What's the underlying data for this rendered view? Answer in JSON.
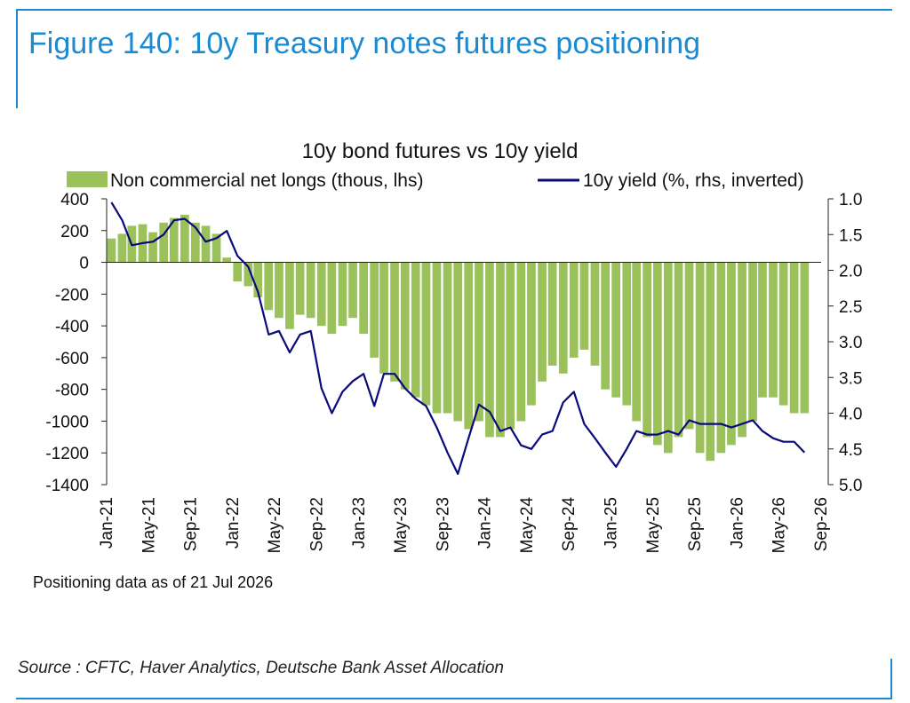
{
  "figure": {
    "title": "Figure 140: 10y Treasury notes futures positioning",
    "source": "Source : CFTC, Haver Analytics, Deutsche Bank Asset Allocation",
    "note": "Positioning data as of 21 Jul 2026"
  },
  "colors": {
    "accent": "#1b8ad0",
    "bars": "#9bc15b",
    "line": "#0a0a7a"
  },
  "chart_data": {
    "type": "bar",
    "title": "10y bond futures vs 10y yield",
    "legend_position": "top",
    "grid": false,
    "x_tick_labels": [
      "Jan-21",
      "May-21",
      "Sep-21",
      "Jan-22",
      "May-22",
      "Sep-22",
      "Jan-23",
      "May-23",
      "Sep-23",
      "Jan-24",
      "May-24",
      "Sep-24",
      "Jan-25",
      "May-25",
      "Sep-25",
      "Jan-26",
      "May-26",
      "Sep-26"
    ],
    "x_range": [
      "2021-01-01",
      "2026-09-01"
    ],
    "y_left": {
      "ticks": [
        400,
        200,
        0,
        -200,
        -400,
        -600,
        -800,
        -1000,
        -1200,
        -1400
      ],
      "range": [
        -1400,
        400
      ]
    },
    "y_right": {
      "ticks": [
        "1.0",
        "1.5",
        "2.0",
        "2.5",
        "3.0",
        "3.5",
        "4.0",
        "4.5",
        "5.0"
      ],
      "range": [
        1.0,
        5.0
      ],
      "inverted": true
    },
    "series": [
      {
        "name": "Non commercial net longs (thous, lhs)",
        "type": "bar",
        "axis": "left",
        "dates": [
          "2021-01",
          "2021-02",
          "2021-03",
          "2021-04",
          "2021-05",
          "2021-06",
          "2021-07",
          "2021-08",
          "2021-09",
          "2021-10",
          "2021-11",
          "2021-12",
          "2022-01",
          "2022-02",
          "2022-03",
          "2022-04",
          "2022-05",
          "2022-06",
          "2022-07",
          "2022-08",
          "2022-09",
          "2022-10",
          "2022-11",
          "2022-12",
          "2023-01",
          "2023-02",
          "2023-03",
          "2023-04",
          "2023-05",
          "2023-06",
          "2023-07",
          "2023-08",
          "2023-09",
          "2023-10",
          "2023-11",
          "2023-12",
          "2024-01",
          "2024-02",
          "2024-03",
          "2024-04",
          "2024-05",
          "2024-06",
          "2024-07",
          "2024-08",
          "2024-09",
          "2024-10",
          "2024-11",
          "2024-12",
          "2025-01",
          "2025-02",
          "2025-03",
          "2025-04",
          "2025-05",
          "2025-06",
          "2025-07",
          "2025-08",
          "2025-09",
          "2025-10",
          "2025-11",
          "2025-12",
          "2026-01",
          "2026-02",
          "2026-03",
          "2026-04",
          "2026-05",
          "2026-06",
          "2026-07"
        ],
        "values": [
          150,
          180,
          230,
          240,
          190,
          250,
          280,
          300,
          250,
          230,
          180,
          30,
          -120,
          -150,
          -220,
          -300,
          -350,
          -420,
          -330,
          -350,
          -400,
          -450,
          -400,
          -350,
          -450,
          -600,
          -700,
          -750,
          -800,
          -850,
          -900,
          -950,
          -950,
          -1000,
          -1050,
          -1000,
          -1100,
          -1100,
          -1050,
          -1000,
          -900,
          -750,
          -650,
          -700,
          -600,
          -550,
          -650,
          -800,
          -850,
          -900,
          -1000,
          -1100,
          -1150,
          -1200,
          -1100,
          -1050,
          -1200,
          -1250,
          -1200,
          -1150,
          -1100,
          -1000,
          -850,
          -850,
          -900,
          -950,
          -950
        ]
      },
      {
        "name": "10y yield (%, rhs, inverted)",
        "type": "line",
        "axis": "right",
        "dates": [
          "2021-01",
          "2021-02",
          "2021-03",
          "2021-04",
          "2021-05",
          "2021-06",
          "2021-07",
          "2021-08",
          "2021-09",
          "2021-10",
          "2021-11",
          "2021-12",
          "2022-01",
          "2022-02",
          "2022-03",
          "2022-04",
          "2022-05",
          "2022-06",
          "2022-07",
          "2022-08",
          "2022-09",
          "2022-10",
          "2022-11",
          "2022-12",
          "2023-01",
          "2023-02",
          "2023-03",
          "2023-04",
          "2023-05",
          "2023-06",
          "2023-07",
          "2023-08",
          "2023-09",
          "2023-10",
          "2023-11",
          "2023-12",
          "2024-01",
          "2024-02",
          "2024-03",
          "2024-04",
          "2024-05",
          "2024-06",
          "2024-07",
          "2024-08",
          "2024-09",
          "2024-10",
          "2024-11",
          "2024-12",
          "2025-01",
          "2025-02",
          "2025-03",
          "2025-04",
          "2025-05",
          "2025-06",
          "2025-07",
          "2025-08",
          "2025-09",
          "2025-10",
          "2025-11",
          "2025-12",
          "2026-01",
          "2026-02",
          "2026-03",
          "2026-04",
          "2026-05",
          "2026-06",
          "2026-07"
        ],
        "values": [
          1.05,
          1.3,
          1.65,
          1.62,
          1.6,
          1.5,
          1.3,
          1.28,
          1.4,
          1.6,
          1.55,
          1.45,
          1.8,
          1.95,
          2.3,
          2.9,
          2.85,
          3.15,
          2.9,
          2.85,
          3.65,
          4.0,
          3.7,
          3.55,
          3.45,
          3.9,
          3.45,
          3.45,
          3.65,
          3.8,
          3.9,
          4.2,
          4.55,
          4.85,
          4.35,
          3.88,
          3.98,
          4.25,
          4.2,
          4.45,
          4.5,
          4.3,
          4.25,
          3.85,
          3.7,
          4.15,
          4.35,
          4.55,
          4.75,
          4.5,
          4.25,
          4.3,
          4.3,
          4.25,
          4.3,
          4.1,
          4.15,
          4.15,
          4.15,
          4.2,
          4.15,
          4.1,
          4.25,
          4.35,
          4.4,
          4.4,
          4.55
        ]
      }
    ]
  }
}
